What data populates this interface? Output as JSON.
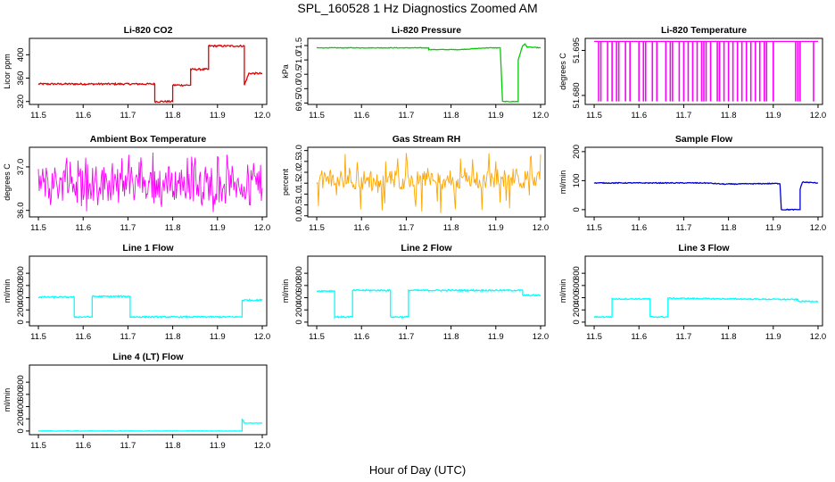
{
  "figure": {
    "title": "SPL_160528 1 Hz Diagnostics Zoomed AM",
    "xlabel": "Hour of Day (UTC)"
  },
  "chart_data": [
    {
      "id": "co2",
      "type": "line",
      "title": "Li-820 CO2",
      "ylabel": "Licor ppm",
      "color": "#e00000",
      "xlim": [
        11.48,
        12.01
      ],
      "ylim": [
        315,
        428
      ],
      "xticks": [
        "11.5",
        "11.6",
        "11.7",
        "11.8",
        "11.9",
        "12.0"
      ],
      "yticks": [
        "320",
        "360",
        "400"
      ],
      "x": [
        11.5,
        11.76,
        11.76,
        11.8,
        11.8,
        11.84,
        11.84,
        11.88,
        11.88,
        11.96,
        11.96,
        11.97,
        12.0
      ],
      "y": [
        350,
        350,
        320,
        320,
        348,
        348,
        375,
        375,
        415,
        415,
        348,
        368,
        368
      ],
      "noise": 1.5
    },
    {
      "id": "pressure",
      "type": "line",
      "title": "Li-820 Pressure",
      "ylabel": "kPa",
      "color": "#00cc00",
      "xlim": [
        11.48,
        12.01
      ],
      "ylim": [
        69.45,
        71.75
      ],
      "xticks": [
        "11.5",
        "11.6",
        "11.7",
        "11.8",
        "11.9",
        "12.0"
      ],
      "yticks": [
        "69.5",
        "70.0",
        "70.5",
        "71.0",
        "71.5"
      ],
      "x": [
        11.5,
        11.75,
        11.75,
        11.82,
        11.88,
        11.91,
        11.915,
        11.95,
        11.95,
        11.96,
        11.965,
        11.97,
        12.0
      ],
      "y": [
        71.42,
        71.42,
        71.36,
        71.36,
        71.42,
        71.42,
        69.55,
        69.55,
        71.0,
        71.5,
        71.55,
        71.45,
        71.42
      ],
      "noise": 0.01
    },
    {
      "id": "temp",
      "type": "spikes",
      "title": "Li-820 Temperature",
      "ylabel": "degrees C",
      "color": "#ff00ff",
      "xlim": [
        11.48,
        12.01
      ],
      "ylim": [
        51.677,
        51.699
      ],
      "xticks": [
        "11.5",
        "11.6",
        "11.7",
        "11.8",
        "11.9",
        "12.0"
      ],
      "yticks": [
        "51.680",
        "51.695"
      ],
      "baseline": 51.698,
      "low": 51.678,
      "spike_x": [
        11.51,
        11.515,
        11.53,
        11.54,
        11.55,
        11.555,
        11.57,
        11.58,
        11.6,
        11.61,
        11.615,
        11.63,
        11.64,
        11.66,
        11.67,
        11.675,
        11.69,
        11.7,
        11.71,
        11.72,
        11.73,
        11.74,
        11.745,
        11.75,
        11.76,
        11.775,
        11.78,
        11.79,
        11.8,
        11.81,
        11.82,
        11.83,
        11.84,
        11.85,
        11.86,
        11.87,
        11.88,
        11.885,
        11.9,
        11.95,
        11.955,
        11.96,
        11.99
      ]
    },
    {
      "id": "boxtemp",
      "type": "noise",
      "title": "Ambient Box Temperature",
      "ylabel": "degrees C",
      "color": "#ff00ff",
      "xlim": [
        11.48,
        12.01
      ],
      "ylim": [
        35.85,
        37.45
      ],
      "xticks": [
        "11.5",
        "11.6",
        "11.7",
        "11.8",
        "11.9",
        "12.0"
      ],
      "yticks": [
        "36.0",
        "37.0"
      ],
      "center": 36.6,
      "band": [
        36.2,
        37.05
      ],
      "extremes": [
        35.95,
        37.35
      ]
    },
    {
      "id": "rh",
      "type": "noise",
      "title": "Gas Stream RH",
      "ylabel": "percent",
      "color": "#ffa500",
      "xlim": [
        11.48,
        12.01
      ],
      "ylim": [
        -0.05,
        3.15
      ],
      "xticks": [
        "11.5",
        "11.6",
        "11.7",
        "11.8",
        "11.9",
        "12.0"
      ],
      "yticks": [
        "0.0",
        "0.5",
        "1.0",
        "1.5",
        "2.0",
        "2.5",
        "3.0"
      ],
      "center": 1.65,
      "band": [
        1.2,
        2.1
      ],
      "extremes": [
        0.1,
        2.9
      ]
    },
    {
      "id": "sample",
      "type": "line",
      "title": "Sample Flow",
      "ylabel": "ml/min",
      "color": "#0000cc",
      "xlim": [
        11.48,
        12.01
      ],
      "ylim": [
        -25,
        215
      ],
      "xticks": [
        "11.5",
        "11.6",
        "11.7",
        "11.8",
        "11.9",
        "12.0"
      ],
      "yticks": [
        "0",
        "100",
        "200"
      ],
      "x": [
        11.5,
        11.75,
        11.79,
        11.9,
        11.915,
        11.918,
        11.96,
        11.96,
        11.965,
        12.0
      ],
      "y": [
        92,
        92,
        88,
        90,
        90,
        0,
        0,
        70,
        95,
        92
      ],
      "noise": 1.5
    },
    {
      "id": "line1",
      "type": "line",
      "title": "Line 1 Flow",
      "ylabel": "ml/min",
      "color": "#00ffff",
      "xlim": [
        11.48,
        12.01
      ],
      "ylim": [
        -60,
        1080
      ],
      "xticks": [
        "11.5",
        "11.6",
        "11.7",
        "11.8",
        "11.9",
        "12.0"
      ],
      "yticks": [
        "0",
        "200",
        "400",
        "600",
        "800"
      ],
      "x": [
        11.5,
        11.58,
        11.58,
        11.62,
        11.62,
        11.705,
        11.705,
        11.955,
        11.955,
        12.0
      ],
      "y": [
        410,
        410,
        85,
        85,
        420,
        420,
        85,
        85,
        360,
        360
      ],
      "noise": 12
    },
    {
      "id": "line2",
      "type": "line",
      "title": "Line 2 Flow",
      "ylabel": "ml/min",
      "color": "#00ffff",
      "xlim": [
        11.48,
        12.01
      ],
      "ylim": [
        -60,
        1080
      ],
      "xticks": [
        "11.5",
        "11.6",
        "11.7",
        "11.8",
        "11.9",
        "12.0"
      ],
      "yticks": [
        "0",
        "200",
        "400",
        "600",
        "800"
      ],
      "x": [
        11.5,
        11.54,
        11.54,
        11.58,
        11.58,
        11.665,
        11.665,
        11.705,
        11.705,
        11.96,
        11.96,
        12.0
      ],
      "y": [
        510,
        510,
        85,
        85,
        520,
        520,
        85,
        85,
        520,
        520,
        440,
        440
      ],
      "noise": 12
    },
    {
      "id": "line3",
      "type": "line",
      "title": "Line 3 Flow",
      "ylabel": "ml/min",
      "color": "#00ffff",
      "xlim": [
        11.48,
        12.01
      ],
      "ylim": [
        -60,
        1080
      ],
      "xticks": [
        "11.5",
        "11.6",
        "11.7",
        "11.8",
        "11.9",
        "12.0"
      ],
      "yticks": [
        "0",
        "200",
        "400",
        "600",
        "800"
      ],
      "x": [
        11.5,
        11.54,
        11.54,
        11.625,
        11.625,
        11.665,
        11.665,
        11.955,
        11.955,
        12.0
      ],
      "y": [
        85,
        85,
        380,
        380,
        85,
        85,
        390,
        370,
        340,
        340
      ],
      "noise": 10
    },
    {
      "id": "line4",
      "type": "line",
      "title": "Line 4 (LT) Flow",
      "ylabel": "ml/min",
      "color": "#00ffff",
      "xlim": [
        11.48,
        12.01
      ],
      "ylim": [
        -60,
        1080
      ],
      "xticks": [
        "11.5",
        "11.6",
        "11.7",
        "11.8",
        "11.9",
        "12.0"
      ],
      "yticks": [
        "0",
        "200",
        "400",
        "600",
        "800"
      ],
      "x": [
        11.5,
        11.955,
        11.955,
        11.96,
        12.0
      ],
      "y": [
        0,
        0,
        200,
        130,
        130
      ],
      "noise": 3
    }
  ]
}
